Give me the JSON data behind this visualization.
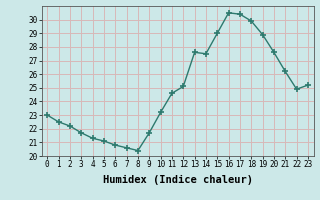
{
  "x": [
    0,
    1,
    2,
    3,
    4,
    5,
    6,
    7,
    8,
    9,
    10,
    11,
    12,
    13,
    14,
    15,
    16,
    17,
    18,
    19,
    20,
    21,
    22,
    23
  ],
  "y": [
    23.0,
    22.5,
    22.2,
    21.7,
    21.3,
    21.1,
    20.8,
    20.6,
    20.4,
    21.7,
    23.2,
    24.6,
    25.1,
    27.6,
    27.5,
    29.0,
    30.5,
    30.4,
    29.9,
    28.9,
    27.6,
    26.2,
    24.9,
    25.2
  ],
  "line_color": "#2d7a6e",
  "marker": "+",
  "marker_size": 4,
  "marker_lw": 1.2,
  "bg_color": "#cce8e8",
  "grid_color": "#d8b8b8",
  "xlabel": "Humidex (Indice chaleur)",
  "xlim": [
    -0.5,
    23.5
  ],
  "ylim": [
    20,
    31
  ],
  "yticks": [
    20,
    21,
    22,
    23,
    24,
    25,
    26,
    27,
    28,
    29,
    30
  ],
  "xticks": [
    0,
    1,
    2,
    3,
    4,
    5,
    6,
    7,
    8,
    9,
    10,
    11,
    12,
    13,
    14,
    15,
    16,
    17,
    18,
    19,
    20,
    21,
    22,
    23
  ],
  "tick_fontsize": 5.5,
  "label_fontsize": 7.5,
  "line_width": 1.0
}
